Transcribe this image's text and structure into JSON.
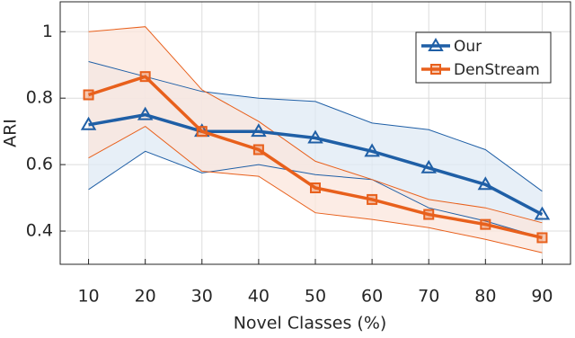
{
  "chart_data": {
    "type": "line",
    "x_label": "Novel Classes (%)",
    "y_label": "ARI",
    "x": [
      10,
      20,
      30,
      40,
      50,
      60,
      70,
      80,
      90
    ],
    "series": [
      {
        "name": "Our",
        "color": "#1f5fa6",
        "band_color": "#dfe9f4",
        "marker": "triangle",
        "values": [
          0.72,
          0.75,
          0.7,
          0.7,
          0.68,
          0.64,
          0.59,
          0.54,
          0.45
        ],
        "upper": [
          0.91,
          0.865,
          0.82,
          0.8,
          0.79,
          0.725,
          0.705,
          0.645,
          0.52
        ],
        "lower": [
          0.525,
          0.64,
          0.575,
          0.6,
          0.57,
          0.555,
          0.47,
          0.43,
          0.38
        ]
      },
      {
        "name": "DenStream",
        "color": "#e8601c",
        "band_color": "#fbe6dc",
        "marker": "square",
        "values": [
          0.81,
          0.865,
          0.7,
          0.645,
          0.53,
          0.495,
          0.45,
          0.42,
          0.38
        ],
        "upper": [
          1.0,
          1.015,
          0.825,
          0.73,
          0.61,
          0.555,
          0.495,
          0.47,
          0.425
        ],
        "lower": [
          0.62,
          0.715,
          0.58,
          0.565,
          0.455,
          0.435,
          0.41,
          0.375,
          0.335
        ]
      }
    ],
    "xlim": [
      5,
      95
    ],
    "ylim": [
      0.3,
      1.09
    ],
    "xticks": [
      10,
      20,
      30,
      40,
      50,
      60,
      70,
      80,
      90
    ],
    "yticks": [
      0.4,
      0.6,
      0.8,
      1
    ],
    "grid": true,
    "legend": "upper right"
  }
}
